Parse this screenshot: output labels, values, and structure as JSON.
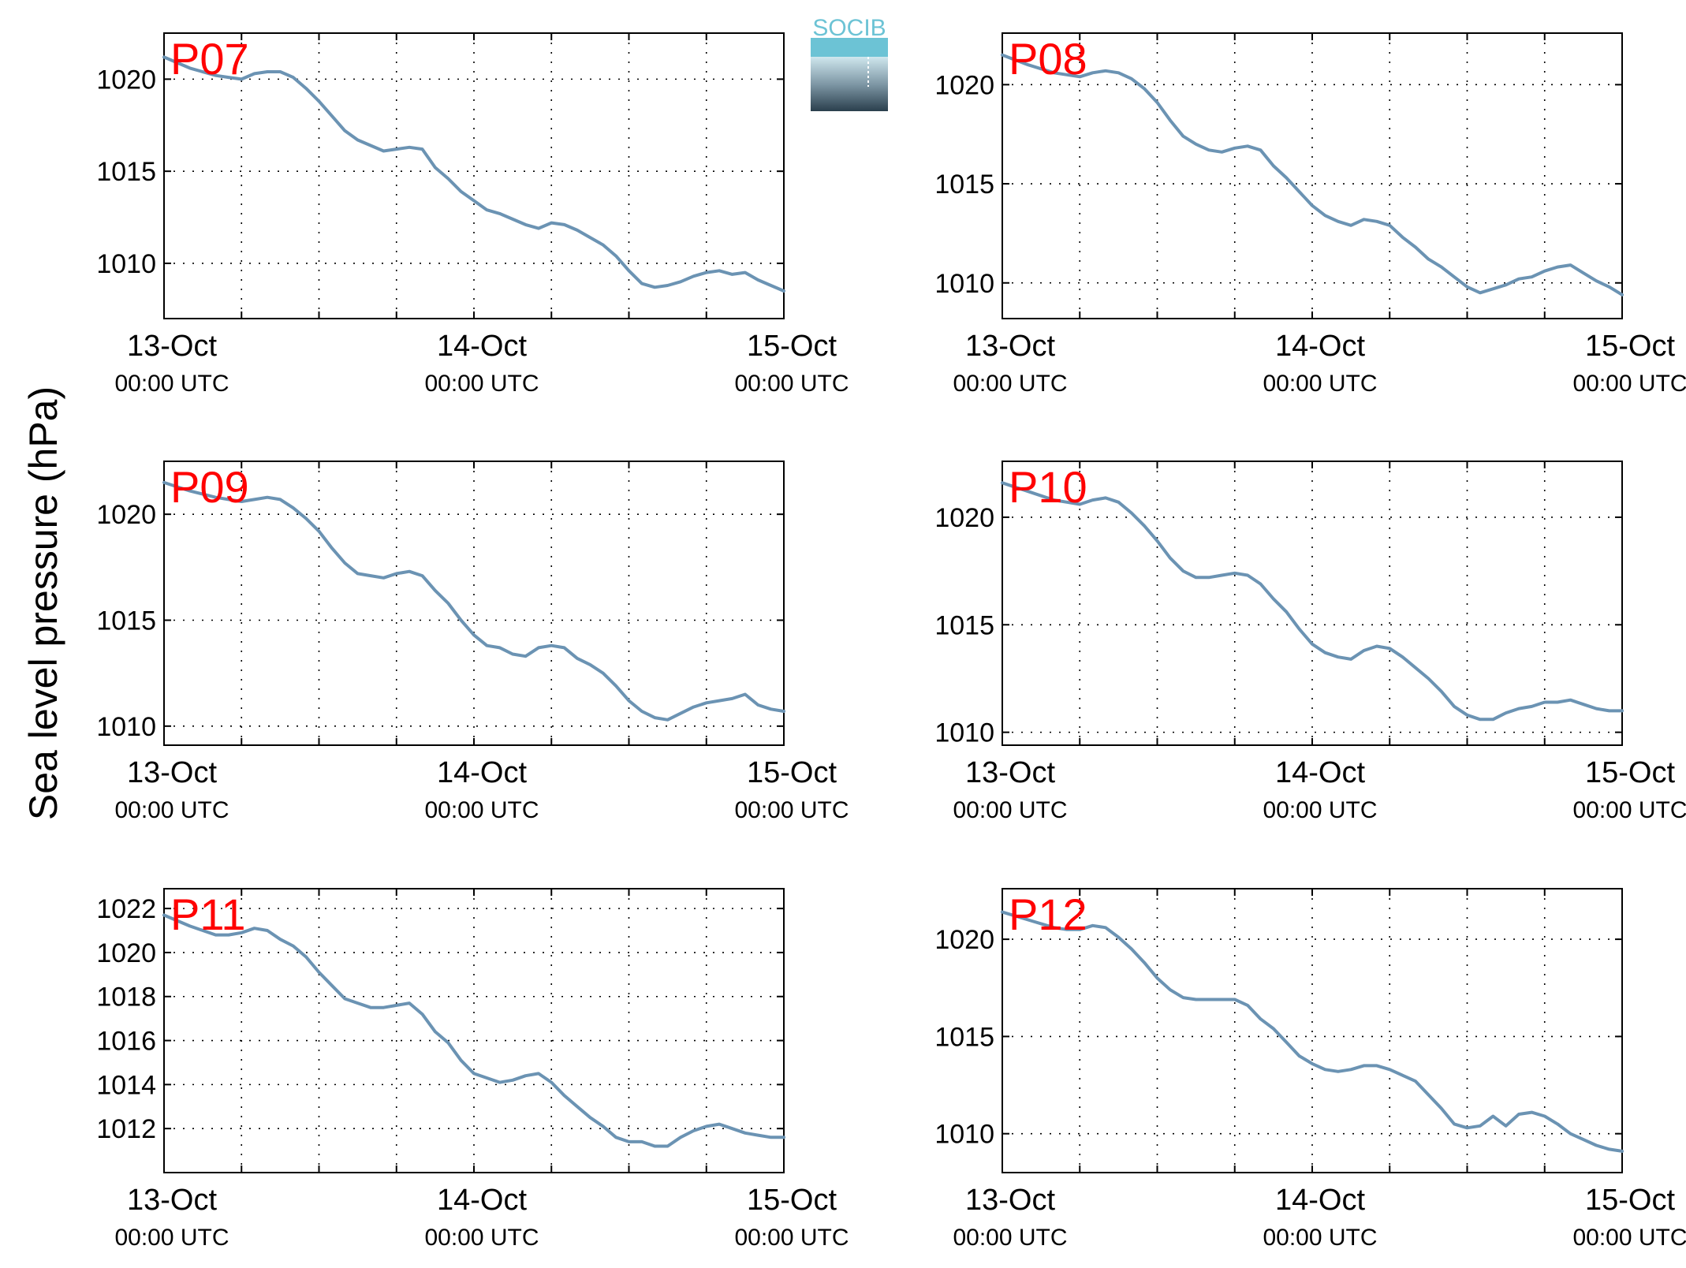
{
  "figure": {
    "ylabel": "Sea level pressure (hPa)",
    "logo_text": "SOCIB",
    "colors": {
      "line": "#6b93b3",
      "station_label": "#ff0000",
      "axes": "#000000",
      "grid": "#000000",
      "logo_top": "#6cc3d5",
      "logo_bottom": "#2a3f4d"
    }
  },
  "chart_data": [
    {
      "type": "line",
      "title": "P07",
      "x_tick_labels": [
        {
          "date": "13-Oct",
          "time": "00:00 UTC"
        },
        {
          "date": "14-Oct",
          "time": "00:00 UTC"
        },
        {
          "date": "15-Oct",
          "time": "00:00 UTC"
        }
      ],
      "x_unit": "hours since 13-Oct 00:00 UTC",
      "xlim": [
        0,
        48
      ],
      "x_grid_step_hours": 6,
      "ylim": [
        1007.0,
        1022.5
      ],
      "yticks": [
        1010,
        1015,
        1020
      ],
      "grid": true,
      "x": [
        0,
        2,
        4,
        5,
        6,
        7,
        8,
        9,
        10,
        11,
        12,
        13,
        14,
        15,
        16,
        17,
        18,
        19,
        20,
        21,
        22,
        23,
        24,
        25,
        26,
        27,
        28,
        29,
        30,
        31,
        32,
        33,
        34,
        35,
        36,
        37,
        38,
        39,
        40,
        41,
        42,
        43,
        44,
        45,
        46,
        47,
        48
      ],
      "y": [
        1021.2,
        1020.6,
        1020.2,
        1020.1,
        1020.0,
        1020.3,
        1020.4,
        1020.4,
        1020.1,
        1019.5,
        1018.8,
        1018.0,
        1017.2,
        1016.7,
        1016.4,
        1016.1,
        1016.2,
        1016.3,
        1016.2,
        1015.2,
        1014.6,
        1013.9,
        1013.4,
        1012.9,
        1012.7,
        1012.4,
        1012.1,
        1011.9,
        1012.2,
        1012.1,
        1011.8,
        1011.4,
        1011.0,
        1010.4,
        1009.6,
        1008.9,
        1008.7,
        1008.8,
        1009.0,
        1009.3,
        1009.5,
        1009.6,
        1009.4,
        1009.5,
        1009.1,
        1008.8,
        1008.5
      ]
    },
    {
      "type": "line",
      "title": "P08",
      "x_tick_labels": [
        {
          "date": "13-Oct",
          "time": "00:00 UTC"
        },
        {
          "date": "14-Oct",
          "time": "00:00 UTC"
        },
        {
          "date": "15-Oct",
          "time": "00:00 UTC"
        }
      ],
      "x_unit": "hours since 13-Oct 00:00 UTC",
      "xlim": [
        0,
        48
      ],
      "x_grid_step_hours": 6,
      "ylim": [
        1008.2,
        1022.6
      ],
      "yticks": [
        1010,
        1015,
        1020
      ],
      "grid": true,
      "x": [
        0,
        2,
        4,
        5,
        6,
        7,
        8,
        9,
        10,
        11,
        12,
        13,
        14,
        15,
        16,
        17,
        18,
        19,
        20,
        21,
        22,
        23,
        24,
        25,
        26,
        27,
        28,
        29,
        30,
        31,
        32,
        33,
        34,
        35,
        36,
        37,
        38,
        39,
        40,
        41,
        42,
        43,
        44,
        45,
        46,
        47,
        48
      ],
      "y": [
        1021.5,
        1021.0,
        1020.6,
        1020.5,
        1020.4,
        1020.6,
        1020.7,
        1020.6,
        1020.3,
        1019.8,
        1019.1,
        1018.2,
        1017.4,
        1017.0,
        1016.7,
        1016.6,
        1016.8,
        1016.9,
        1016.7,
        1015.9,
        1015.3,
        1014.6,
        1013.9,
        1013.4,
        1013.1,
        1012.9,
        1013.2,
        1013.1,
        1012.9,
        1012.3,
        1011.8,
        1011.2,
        1010.8,
        1010.3,
        1009.8,
        1009.5,
        1009.7,
        1009.9,
        1010.2,
        1010.3,
        1010.6,
        1010.8,
        1010.9,
        1010.5,
        1010.1,
        1009.8,
        1009.4
      ]
    },
    {
      "type": "line",
      "title": "P09",
      "x_tick_labels": [
        {
          "date": "13-Oct",
          "time": "00:00 UTC"
        },
        {
          "date": "14-Oct",
          "time": "00:00 UTC"
        },
        {
          "date": "15-Oct",
          "time": "00:00 UTC"
        }
      ],
      "x_unit": "hours since 13-Oct 00:00 UTC",
      "xlim": [
        0,
        48
      ],
      "x_grid_step_hours": 6,
      "ylim": [
        1009.1,
        1022.5
      ],
      "yticks": [
        1010,
        1015,
        1020
      ],
      "grid": true,
      "x": [
        0,
        2,
        4,
        5,
        6,
        7,
        8,
        9,
        10,
        11,
        12,
        13,
        14,
        15,
        16,
        17,
        18,
        19,
        20,
        21,
        22,
        23,
        24,
        25,
        26,
        27,
        28,
        29,
        30,
        31,
        32,
        33,
        34,
        35,
        36,
        37,
        38,
        39,
        40,
        41,
        42,
        43,
        44,
        45,
        46,
        47,
        48
      ],
      "y": [
        1021.5,
        1021.1,
        1020.8,
        1020.7,
        1020.6,
        1020.7,
        1020.8,
        1020.7,
        1020.3,
        1019.8,
        1019.2,
        1018.4,
        1017.7,
        1017.2,
        1017.1,
        1017.0,
        1017.2,
        1017.3,
        1017.1,
        1016.4,
        1015.8,
        1015.0,
        1014.3,
        1013.8,
        1013.7,
        1013.4,
        1013.3,
        1013.7,
        1013.8,
        1013.7,
        1013.2,
        1012.9,
        1012.5,
        1011.9,
        1011.2,
        1010.7,
        1010.4,
        1010.3,
        1010.6,
        1010.9,
        1011.1,
        1011.2,
        1011.3,
        1011.5,
        1011.0,
        1010.8,
        1010.7
      ]
    },
    {
      "type": "line",
      "title": "P10",
      "x_tick_labels": [
        {
          "date": "13-Oct",
          "time": "00:00 UTC"
        },
        {
          "date": "14-Oct",
          "time": "00:00 UTC"
        },
        {
          "date": "15-Oct",
          "time": "00:00 UTC"
        }
      ],
      "x_unit": "hours since 13-Oct 00:00 UTC",
      "xlim": [
        0,
        48
      ],
      "x_grid_step_hours": 6,
      "ylim": [
        1009.4,
        1022.6
      ],
      "yticks": [
        1010,
        1015,
        1020
      ],
      "grid": true,
      "x": [
        0,
        2,
        4,
        5,
        6,
        7,
        8,
        9,
        10,
        11,
        12,
        13,
        14,
        15,
        16,
        17,
        18,
        19,
        20,
        21,
        22,
        23,
        24,
        25,
        26,
        27,
        28,
        29,
        30,
        31,
        32,
        33,
        34,
        35,
        36,
        37,
        38,
        39,
        40,
        41,
        42,
        43,
        44,
        45,
        46,
        47,
        48
      ],
      "y": [
        1021.6,
        1021.2,
        1020.8,
        1020.7,
        1020.6,
        1020.8,
        1020.9,
        1020.7,
        1020.2,
        1019.6,
        1018.9,
        1018.1,
        1017.5,
        1017.2,
        1017.2,
        1017.3,
        1017.4,
        1017.3,
        1016.9,
        1016.2,
        1015.6,
        1014.8,
        1014.1,
        1013.7,
        1013.5,
        1013.4,
        1013.8,
        1014.0,
        1013.9,
        1013.5,
        1013.0,
        1012.5,
        1011.9,
        1011.2,
        1010.8,
        1010.6,
        1010.6,
        1010.9,
        1011.1,
        1011.2,
        1011.4,
        1011.4,
        1011.5,
        1011.3,
        1011.1,
        1011.0,
        1011.0
      ]
    },
    {
      "type": "line",
      "title": "P11",
      "x_tick_labels": [
        {
          "date": "13-Oct",
          "time": "00:00 UTC"
        },
        {
          "date": "14-Oct",
          "time": "00:00 UTC"
        },
        {
          "date": "15-Oct",
          "time": "00:00 UTC"
        }
      ],
      "x_unit": "hours since 13-Oct 00:00 UTC",
      "xlim": [
        0,
        48
      ],
      "x_grid_step_hours": 6,
      "ylim": [
        1010.0,
        1022.9
      ],
      "yticks": [
        1012,
        1014,
        1016,
        1018,
        1020,
        1022
      ],
      "grid": true,
      "x": [
        0,
        2,
        4,
        5,
        6,
        7,
        8,
        9,
        10,
        11,
        12,
        13,
        14,
        15,
        16,
        17,
        18,
        19,
        20,
        21,
        22,
        23,
        24,
        25,
        26,
        27,
        28,
        29,
        30,
        31,
        32,
        33,
        34,
        35,
        36,
        37,
        38,
        39,
        40,
        41,
        42,
        43,
        44,
        45,
        46,
        47,
        48
      ],
      "y": [
        1021.7,
        1021.2,
        1020.8,
        1020.8,
        1020.9,
        1021.1,
        1021.0,
        1020.6,
        1020.3,
        1019.8,
        1019.1,
        1018.5,
        1017.9,
        1017.7,
        1017.5,
        1017.5,
        1017.6,
        1017.7,
        1017.2,
        1016.4,
        1015.9,
        1015.1,
        1014.5,
        1014.3,
        1014.1,
        1014.2,
        1014.4,
        1014.5,
        1014.1,
        1013.5,
        1013.0,
        1012.5,
        1012.1,
        1011.6,
        1011.4,
        1011.4,
        1011.2,
        1011.2,
        1011.6,
        1011.9,
        1012.1,
        1012.2,
        1012.0,
        1011.8,
        1011.7,
        1011.6,
        1011.6
      ]
    },
    {
      "type": "line",
      "title": "P12",
      "x_tick_labels": [
        {
          "date": "13-Oct",
          "time": "00:00 UTC"
        },
        {
          "date": "14-Oct",
          "time": "00:00 UTC"
        },
        {
          "date": "15-Oct",
          "time": "00:00 UTC"
        }
      ],
      "x_unit": "hours since 13-Oct 00:00 UTC",
      "xlim": [
        0,
        48
      ],
      "x_grid_step_hours": 6,
      "ylim": [
        1008.0,
        1022.6
      ],
      "yticks": [
        1010,
        1015,
        1020
      ],
      "grid": true,
      "x": [
        0,
        2,
        4,
        5,
        6,
        7,
        8,
        9,
        10,
        11,
        12,
        13,
        14,
        15,
        16,
        17,
        18,
        19,
        20,
        21,
        22,
        23,
        24,
        25,
        26,
        27,
        28,
        29,
        30,
        31,
        32,
        33,
        34,
        35,
        36,
        37,
        38,
        39,
        40,
        41,
        42,
        43,
        44,
        45,
        46,
        47,
        48
      ],
      "y": [
        1021.4,
        1021.0,
        1020.6,
        1020.5,
        1020.5,
        1020.7,
        1020.6,
        1020.1,
        1019.5,
        1018.8,
        1018.0,
        1017.4,
        1017.0,
        1016.9,
        1016.9,
        1016.9,
        1016.9,
        1016.6,
        1015.9,
        1015.4,
        1014.7,
        1014.0,
        1013.6,
        1013.3,
        1013.2,
        1013.3,
        1013.5,
        1013.5,
        1013.3,
        1013.0,
        1012.7,
        1012.0,
        1011.3,
        1010.5,
        1010.3,
        1010.4,
        1010.9,
        1010.4,
        1011.0,
        1011.1,
        1010.9,
        1010.5,
        1010.0,
        1009.7,
        1009.4,
        1009.2,
        1009.1
      ]
    }
  ]
}
